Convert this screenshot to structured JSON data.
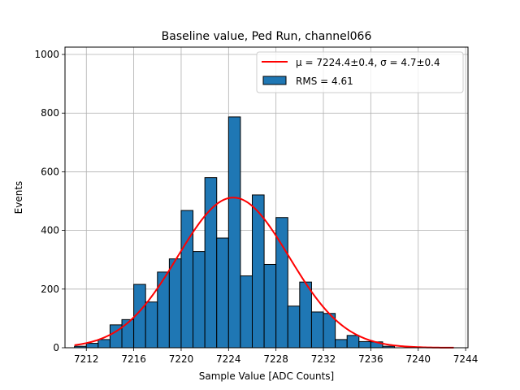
{
  "chart_data": {
    "type": "histogram",
    "title": "Baseline value, Ped Run, channel066",
    "xlabel": "Sample Value [ADC Counts]",
    "ylabel": "Events",
    "xlim": [
      7210.2,
      7244.2
    ],
    "ylim": [
      0,
      1025
    ],
    "grid": true,
    "x_ticks": [
      7212,
      7216,
      7220,
      7224,
      7228,
      7232,
      7236,
      7240,
      7244
    ],
    "y_ticks": [
      0,
      200,
      400,
      600,
      800,
      1000
    ],
    "bin_width": 1,
    "bins": [
      {
        "x": 7211.5,
        "value": 5
      },
      {
        "x": 7212.5,
        "value": 15
      },
      {
        "x": 7213.5,
        "value": 28
      },
      {
        "x": 7214.5,
        "value": 78
      },
      {
        "x": 7215.5,
        "value": 96
      },
      {
        "x": 7216.5,
        "value": 216
      },
      {
        "x": 7217.5,
        "value": 156
      },
      {
        "x": 7218.5,
        "value": 258
      },
      {
        "x": 7219.5,
        "value": 303
      },
      {
        "x": 7220.5,
        "value": 468
      },
      {
        "x": 7221.5,
        "value": 328
      },
      {
        "x": 7222.5,
        "value": 580
      },
      {
        "x": 7223.5,
        "value": 374
      },
      {
        "x": 7224.5,
        "value": 787
      },
      {
        "x": 7225.5,
        "value": 245
      },
      {
        "x": 7226.5,
        "value": 521
      },
      {
        "x": 7227.5,
        "value": 284
      },
      {
        "x": 7228.5,
        "value": 444
      },
      {
        "x": 7229.5,
        "value": 142
      },
      {
        "x": 7230.5,
        "value": 224
      },
      {
        "x": 7231.5,
        "value": 122
      },
      {
        "x": 7232.5,
        "value": 117
      },
      {
        "x": 7233.5,
        "value": 28
      },
      {
        "x": 7234.5,
        "value": 42
      },
      {
        "x": 7235.5,
        "value": 21
      },
      {
        "x": 7236.5,
        "value": 20
      },
      {
        "x": 7237.5,
        "value": 5
      }
    ],
    "fit": {
      "type": "gaussian",
      "mu": 7224.4,
      "sigma": 4.7,
      "amplitude": 512,
      "x_range": [
        7211,
        7243
      ],
      "color": "#ff0000"
    },
    "bar_color": "#1f77b4",
    "legend": {
      "position": "top-right",
      "entries": [
        {
          "kind": "line",
          "label_prefix": "μ = 7224.4±0.4, ",
          "label_suffix": "σ = 4.7±0.4"
        },
        {
          "kind": "patch",
          "label": "RMS = 4.61"
        }
      ]
    }
  }
}
